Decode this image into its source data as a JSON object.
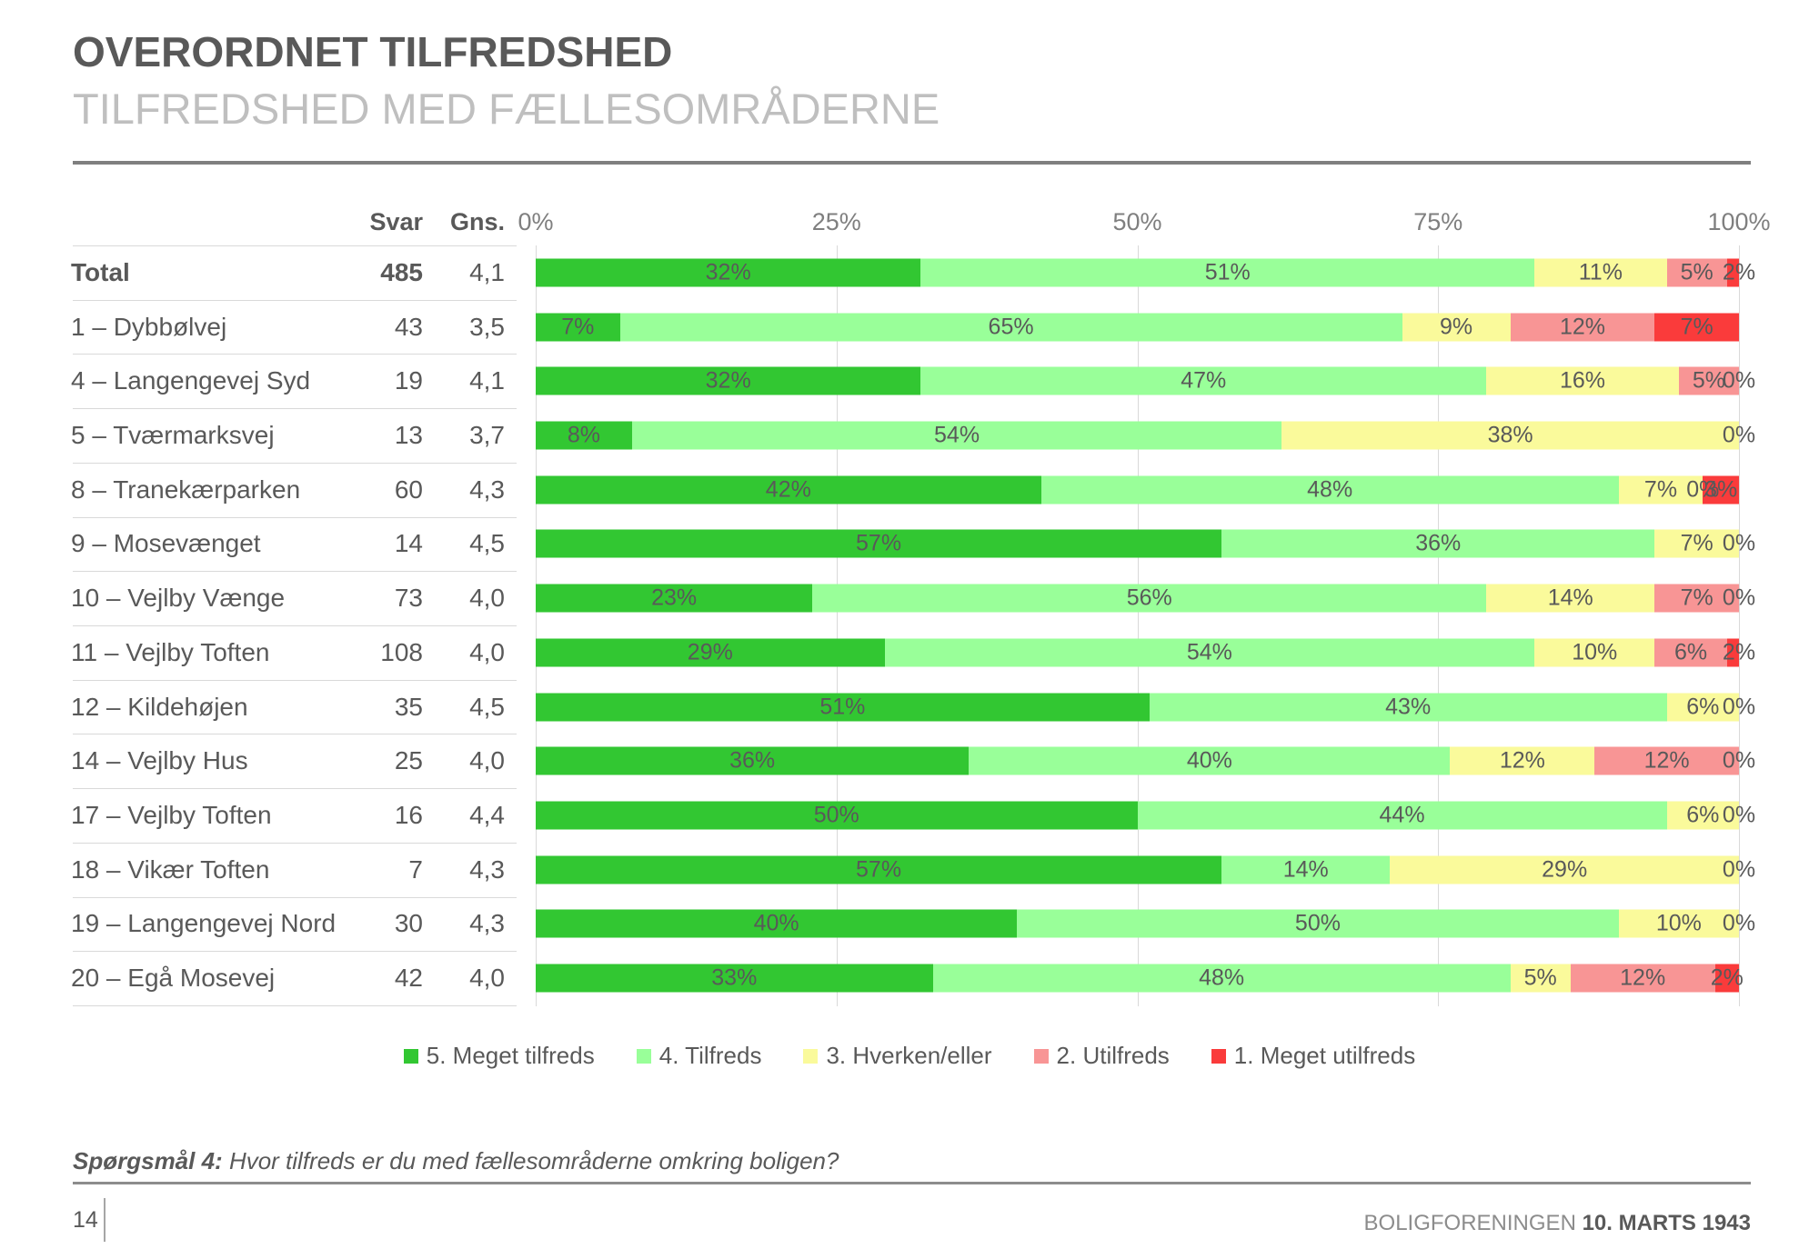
{
  "header": {
    "title": "OVERORDNET TILFREDSHED",
    "subtitle": "TILFREDSHED MED FÆLLESOMRÅDERNE"
  },
  "table": {
    "col_svar": "Svar",
    "col_gns": "Gns."
  },
  "chart_data": {
    "type": "bar",
    "stacked": true,
    "orientation": "horizontal",
    "xlim": [
      0,
      100
    ],
    "axis_ticks": [
      "0%",
      "25%",
      "50%",
      "75%",
      "100%"
    ],
    "grid": true,
    "legend_position": "bottom",
    "series_names": [
      "5. Meget tilfreds",
      "4. Tilfreds",
      "3. Hverken/eller",
      "2. Utilfreds",
      "1. Meget utilfreds"
    ],
    "series_colors": [
      "#32c732",
      "#99ff99",
      "#fafa9b",
      "#f89595",
      "#fa3b3b"
    ],
    "rows": [
      {
        "label": "Total",
        "bold": true,
        "svar": "485",
        "gns": "4,1",
        "values": [
          32,
          51,
          11,
          5,
          2
        ],
        "labels": [
          "32%",
          "51%",
          "11%",
          "5%",
          "2%"
        ]
      },
      {
        "label": "1 – Dybbølvej",
        "bold": false,
        "svar": "43",
        "gns": "3,5",
        "values": [
          7,
          65,
          9,
          12,
          7
        ],
        "labels": [
          "7%",
          "65%",
          "9%",
          "12%",
          "7%"
        ]
      },
      {
        "label": "4 – Langengevej Syd",
        "bold": false,
        "svar": "19",
        "gns": "4,1",
        "values": [
          32,
          47,
          16,
          5,
          0
        ],
        "labels": [
          "32%",
          "47%",
          "16%",
          "5%",
          "0%"
        ]
      },
      {
        "label": "5 – Tværmarksvej",
        "bold": false,
        "svar": "13",
        "gns": "3,7",
        "values": [
          8,
          54,
          38,
          0,
          0
        ],
        "labels": [
          "8%",
          "54%",
          "38%",
          "0%",
          ""
        ]
      },
      {
        "label": "8 – Tranekærparken",
        "bold": false,
        "svar": "60",
        "gns": "4,3",
        "values": [
          42,
          48,
          7,
          0,
          3
        ],
        "labels": [
          "42%",
          "48%",
          "7%",
          "0%",
          "3%"
        ]
      },
      {
        "label": "9 – Mosevænget",
        "bold": false,
        "svar": "14",
        "gns": "4,5",
        "values": [
          57,
          36,
          7,
          0,
          0
        ],
        "labels": [
          "57%",
          "36%",
          "7%",
          "0%",
          ""
        ]
      },
      {
        "label": "10 – Vejlby Vænge",
        "bold": false,
        "svar": "73",
        "gns": "4,0",
        "values": [
          23,
          56,
          14,
          7,
          0
        ],
        "labels": [
          "23%",
          "56%",
          "14%",
          "7%",
          "0%"
        ]
      },
      {
        "label": "11 – Vejlby Toften",
        "bold": false,
        "svar": "108",
        "gns": "4,0",
        "values": [
          29,
          54,
          10,
          6,
          2
        ],
        "labels": [
          "29%",
          "54%",
          "10%",
          "6%",
          "2%"
        ]
      },
      {
        "label": "12 – Kildehøjen",
        "bold": false,
        "svar": "35",
        "gns": "4,5",
        "values": [
          51,
          43,
          6,
          0,
          0
        ],
        "labels": [
          "51%",
          "43%",
          "6%",
          "0%",
          ""
        ]
      },
      {
        "label": "14 – Vejlby Hus",
        "bold": false,
        "svar": "25",
        "gns": "4,0",
        "values": [
          36,
          40,
          12,
          12,
          0
        ],
        "labels": [
          "36%",
          "40%",
          "12%",
          "12%",
          "0%"
        ]
      },
      {
        "label": "17 – Vejlby Toften",
        "bold": false,
        "svar": "16",
        "gns": "4,4",
        "values": [
          50,
          44,
          6,
          0,
          0
        ],
        "labels": [
          "50%",
          "44%",
          "6%",
          "0%",
          ""
        ]
      },
      {
        "label": "18 – Vikær Toften",
        "bold": false,
        "svar": "7",
        "gns": "4,3",
        "values": [
          57,
          14,
          29,
          0,
          0
        ],
        "labels": [
          "57%",
          "14%",
          "29%",
          "0%",
          ""
        ]
      },
      {
        "label": "19 – Langengevej Nord",
        "bold": false,
        "svar": "30",
        "gns": "4,3",
        "values": [
          40,
          50,
          10,
          0,
          0
        ],
        "labels": [
          "40%",
          "50%",
          "10%",
          "0%",
          ""
        ]
      },
      {
        "label": "20 – Egå Mosevej",
        "bold": false,
        "svar": "42",
        "gns": "4,0",
        "values": [
          33,
          48,
          5,
          12,
          2
        ],
        "labels": [
          "33%",
          "48%",
          "5%",
          "12%",
          "2%"
        ]
      }
    ]
  },
  "footnote": {
    "prefix": "Spørgsmål 4:",
    "text": " Hvor tilfreds er du med fællesområderne omkring boligen?"
  },
  "footer": {
    "page": "14",
    "org": "BOLIGFORENINGEN ",
    "date": "10. MARTS 1943"
  }
}
